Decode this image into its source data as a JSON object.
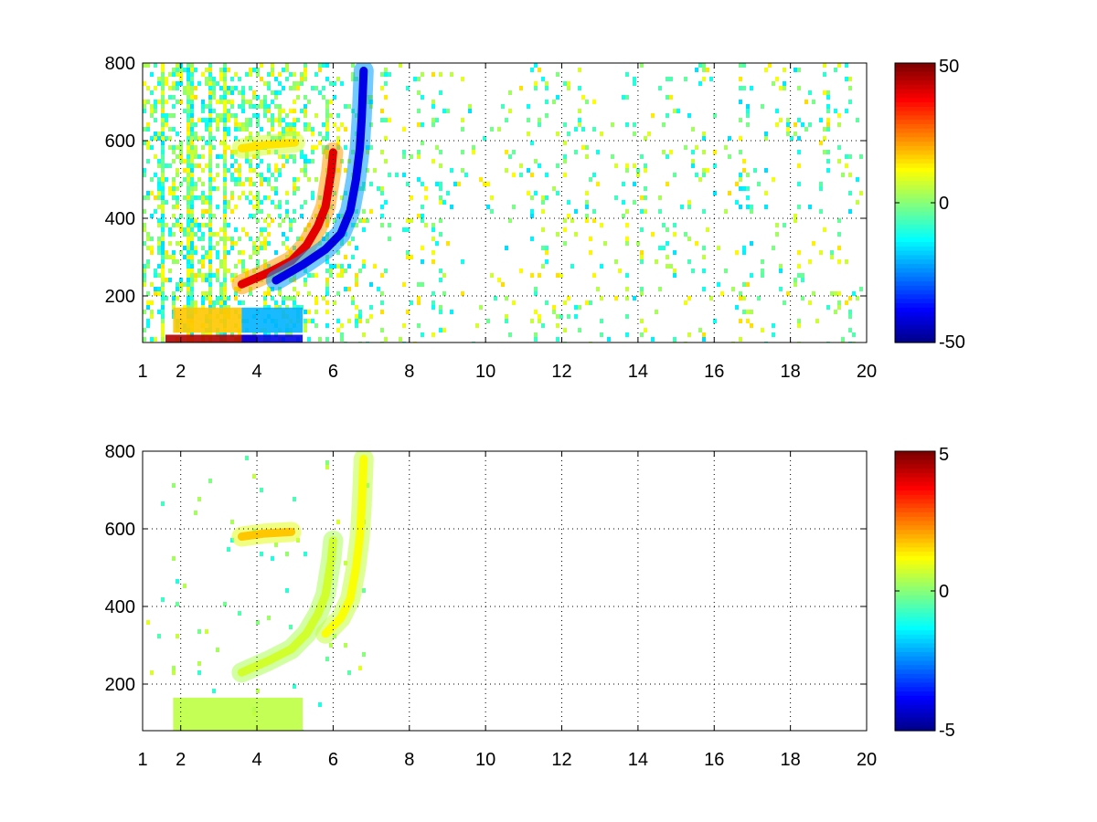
{
  "chart_data": [
    {
      "type": "heatmap",
      "title": "",
      "xlabel": "",
      "ylabel": "",
      "xlim": [
        1,
        20
      ],
      "ylim": [
        80,
        800
      ],
      "x_ticks": [
        1,
        2,
        4,
        6,
        8,
        10,
        12,
        14,
        16,
        18,
        20
      ],
      "y_ticks": [
        200,
        400,
        600,
        800
      ],
      "grid": true,
      "colormap": "jet",
      "colorbar": {
        "min": -50,
        "max": 50,
        "ticks": [
          50,
          0,
          -50
        ]
      },
      "features": [
        {
          "kind": "curve",
          "sign": 1,
          "value": 40,
          "points": [
            [
              3.6,
              230
            ],
            [
              4.3,
              260
            ],
            [
              4.9,
              290
            ],
            [
              5.3,
              330
            ],
            [
              5.6,
              380
            ],
            [
              5.8,
              430
            ],
            [
              5.95,
              520
            ],
            [
              6.0,
              570
            ]
          ]
        },
        {
          "kind": "curve",
          "sign": -1,
          "value": -40,
          "points": [
            [
              4.5,
              240
            ],
            [
              5.2,
              280
            ],
            [
              5.8,
              320
            ],
            [
              6.2,
              360
            ],
            [
              6.45,
              420
            ],
            [
              6.6,
              500
            ],
            [
              6.7,
              580
            ],
            [
              6.75,
              660
            ],
            [
              6.8,
              780
            ]
          ]
        },
        {
          "kind": "band",
          "value": 45,
          "x": [
            1.6,
            4.0
          ],
          "y": [
            80,
            100
          ]
        },
        {
          "kind": "band",
          "value": -40,
          "x": [
            3.6,
            5.2
          ],
          "y": [
            80,
            100
          ]
        },
        {
          "kind": "band",
          "value": 18,
          "x": [
            1.8,
            3.6
          ],
          "y": [
            105,
            170
          ]
        },
        {
          "kind": "band",
          "value": -20,
          "x": [
            3.6,
            5.2
          ],
          "y": [
            105,
            170
          ]
        },
        {
          "kind": "curve",
          "sign": 1,
          "value": 15,
          "points": [
            [
              3.6,
              580
            ],
            [
              4.3,
              590
            ],
            [
              5.0,
              595
            ]
          ]
        }
      ]
    },
    {
      "type": "heatmap",
      "title": "",
      "xlabel": "",
      "ylabel": "",
      "xlim": [
        1,
        20
      ],
      "ylim": [
        80,
        800
      ],
      "x_ticks": [
        1,
        2,
        4,
        6,
        8,
        10,
        12,
        14,
        16,
        18,
        20
      ],
      "y_ticks": [
        200,
        400,
        600,
        800
      ],
      "grid": true,
      "colormap": "jet",
      "colorbar": {
        "min": -5,
        "max": 5,
        "ticks": [
          5,
          0,
          -5
        ]
      },
      "features": [
        {
          "kind": "curve",
          "sign": 1,
          "value": 0.8,
          "points": [
            [
              3.6,
              230
            ],
            [
              4.3,
              260
            ],
            [
              4.9,
              290
            ],
            [
              5.3,
              330
            ],
            [
              5.6,
              380
            ],
            [
              5.8,
              430
            ],
            [
              5.95,
              520
            ],
            [
              6.0,
              570
            ]
          ]
        },
        {
          "kind": "curve",
          "sign": 1,
          "value": 1.2,
          "points": [
            [
              5.8,
              330
            ],
            [
              6.2,
              370
            ],
            [
              6.45,
              420
            ],
            [
              6.6,
              500
            ],
            [
              6.7,
              580
            ],
            [
              6.75,
              660
            ],
            [
              6.8,
              780
            ]
          ]
        },
        {
          "kind": "band",
          "value": 0.6,
          "x": [
            1.8,
            5.2
          ],
          "y": [
            80,
            165
          ]
        },
        {
          "kind": "curve",
          "sign": 1,
          "value": 1.8,
          "points": [
            [
              3.6,
              580
            ],
            [
              4.2,
              588
            ],
            [
              4.9,
              592
            ]
          ]
        }
      ]
    }
  ]
}
